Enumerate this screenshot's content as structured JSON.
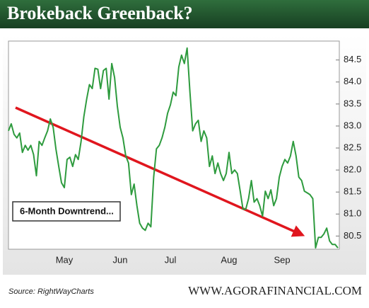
{
  "chart_data": {
    "type": "line",
    "title": "Brokeback Greenback?",
    "annotation": "6-Month Downtrend...",
    "source": "Source: RightWayCharts",
    "footer": "WWW.AGORAFINANCIAL.COM",
    "categories": [
      null,
      null,
      null,
      null,
      null,
      null,
      null,
      null,
      null,
      null,
      null,
      null,
      null,
      null,
      null,
      null,
      null,
      null,
      null,
      null,
      "May",
      null,
      null,
      null,
      null,
      null,
      null,
      null,
      null,
      null,
      null,
      null,
      null,
      null,
      null,
      null,
      null,
      null,
      null,
      null,
      "Jun",
      null,
      null,
      null,
      null,
      null,
      null,
      null,
      null,
      null,
      null,
      null,
      null,
      null,
      null,
      null,
      null,
      null,
      "Jul",
      null,
      null,
      null,
      null,
      null,
      null,
      null,
      null,
      null,
      null,
      null,
      null,
      null,
      null,
      null,
      null,
      null,
      null,
      null,
      null,
      "Aug",
      null,
      null,
      null,
      null,
      null,
      null,
      null,
      null,
      null,
      null,
      null,
      null,
      null,
      null,
      null,
      null,
      null,
      null,
      "Sep",
      null,
      null,
      null,
      null,
      null,
      null,
      null,
      null,
      null,
      null,
      null,
      null,
      null,
      null,
      null,
      null,
      null,
      null,
      null,
      null
    ],
    "series": [
      {
        "color": "#2e9b3e",
        "values": [
          82.89,
          83.05,
          82.81,
          82.73,
          82.84,
          82.4,
          82.56,
          82.45,
          82.56,
          82.35,
          81.87,
          82.65,
          82.56,
          82.73,
          82.89,
          83.16,
          82.97,
          82.48,
          82.08,
          81.71,
          81.6,
          82.24,
          82.29,
          82.08,
          82.35,
          82.24,
          82.65,
          83.21,
          83.61,
          83.94,
          83.85,
          84.31,
          84.29,
          83.85,
          84.26,
          84.31,
          83.61,
          84.42,
          84.1,
          83.45,
          82.97,
          82.73,
          82.32,
          82.16,
          81.44,
          81.68,
          81.19,
          80.79,
          80.68,
          80.63,
          80.79,
          80.71,
          81.84,
          82.48,
          82.56,
          82.73,
          82.97,
          83.29,
          83.48,
          83.77,
          83.69,
          84.34,
          84.61,
          84.42,
          84.77,
          83.77,
          82.89,
          83.05,
          83.13,
          82.65,
          82.89,
          82.73,
          82.08,
          82.32,
          81.92,
          82.16,
          81.92,
          81.76,
          81.92,
          82.4,
          81.92,
          82.0,
          81.92,
          81.52,
          81.11,
          81.11,
          81.35,
          81.76,
          81.27,
          81.35,
          81.19,
          80.95,
          81.52,
          81.35,
          81.55,
          81.19,
          81.35,
          81.84,
          82.08,
          82.24,
          82.16,
          82.32,
          82.65,
          82.32,
          81.84,
          81.76,
          81.52,
          81.48,
          81.44,
          81.35,
          80.23,
          80.47,
          80.47,
          80.55,
          80.68,
          80.39,
          80.31,
          80.31,
          80.23
        ]
      }
    ],
    "ylim": [
      80.2,
      84.93
    ],
    "yticks": [
      {
        "value": 80.5,
        "label": "80.5"
      },
      {
        "value": 81,
        "label": "81.0"
      },
      {
        "value": 81.5,
        "label": "81.5"
      },
      {
        "value": 82,
        "label": "82.0"
      },
      {
        "value": 82.5,
        "label": "82.5"
      },
      {
        "value": 83,
        "label": "83.0"
      },
      {
        "value": 83.5,
        "label": "83.5"
      },
      {
        "value": 84,
        "label": "84.0"
      },
      {
        "value": 84.5,
        "label": "84.5"
      }
    ],
    "y_axis_side": "right",
    "trend_color": "#e0161e"
  }
}
